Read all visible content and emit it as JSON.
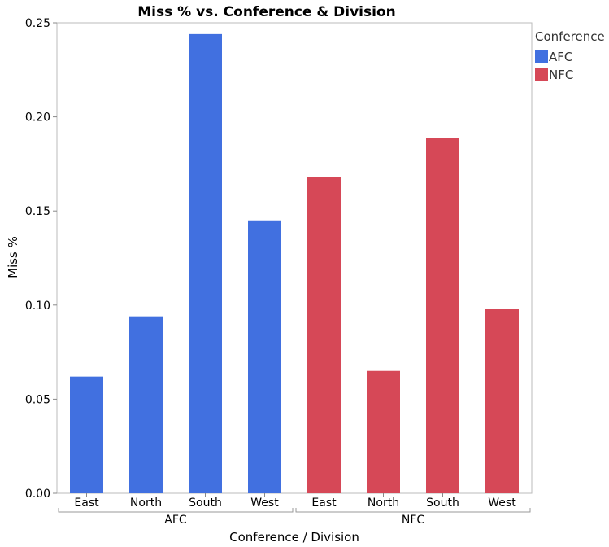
{
  "chart_data": {
    "type": "bar",
    "title": "Miss % vs. Conference & Division",
    "xlabel": "Conference / Division",
    "ylabel": "Miss %",
    "ylim": [
      0,
      0.25
    ],
    "yticks": [
      "0.00",
      "0.05",
      "0.10",
      "0.15",
      "0.20",
      "0.25"
    ],
    "ytick_values": [
      0,
      0.05,
      0.1,
      0.15,
      0.2,
      0.25
    ],
    "groups": [
      {
        "name": "AFC",
        "color": "#4170E0",
        "categories": [
          "East",
          "North",
          "South",
          "West"
        ],
        "values": [
          0.062,
          0.094,
          0.244,
          0.145
        ]
      },
      {
        "name": "NFC",
        "color": "#D64857",
        "categories": [
          "East",
          "North",
          "South",
          "West"
        ],
        "values": [
          0.168,
          0.065,
          0.189,
          0.098
        ]
      }
    ],
    "legend": {
      "title": "Conference",
      "position": "right",
      "items": [
        {
          "label": "AFC",
          "color": "#4170E0"
        },
        {
          "label": "NFC",
          "color": "#D64857"
        }
      ]
    },
    "grid": false
  }
}
